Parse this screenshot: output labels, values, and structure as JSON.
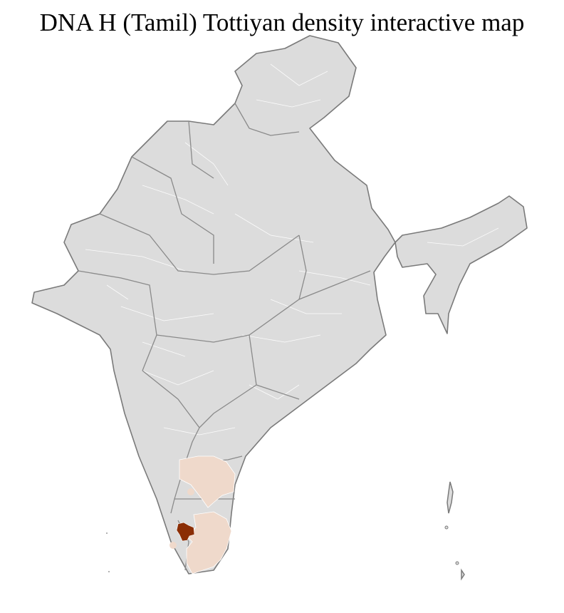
{
  "title": "DNA H (Tamil) Tottiyan density interactive map",
  "colors": {
    "land": "#dcdcdc",
    "border": "#7a7a7a",
    "low_density": "#efd9cb",
    "high_density": "#8b2e05"
  }
}
